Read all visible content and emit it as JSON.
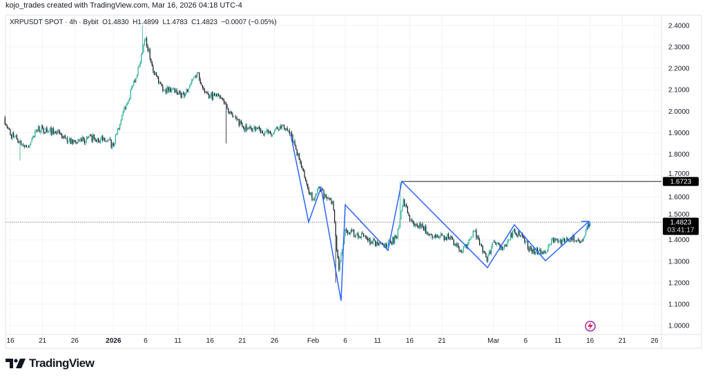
{
  "header": {
    "attribution": "kojo_trades created with TradingView.com, Mar 16, 2026 04:18 UTC-4"
  },
  "legend": {
    "symbol": "XRPUSDT SPOT · 4h · Bybit",
    "open": "O1.4830",
    "high": "H1.4899",
    "low": "L1.4783",
    "close": "C1.4823",
    "change": "−0.0007 (−0.05%)"
  },
  "badges": {
    "level": "1.6723",
    "last_price": "1.4823",
    "countdown": "03:41:17"
  },
  "colors": {
    "up": "#22ab94",
    "down": "#131722",
    "pattern": "#2962ff",
    "level_line": "#131722",
    "badge_bg": "#000000",
    "grid": "#f0f3fa"
  },
  "icons": {
    "replay": "lightning-icon",
    "brand": "tradingview-logo"
  },
  "logo": {
    "text": "TradingView"
  },
  "chart_data": {
    "type": "candlestick",
    "interval": "4h",
    "y_axis": {
      "range": [
        1.0,
        2.4
      ],
      "ticks": [
        "2.4000",
        "2.3000",
        "2.2000",
        "2.1000",
        "2.0000",
        "1.9000",
        "1.8000",
        "1.7000",
        "1.6000",
        "1.5000",
        "1.4000",
        "1.3000",
        "1.2000",
        "1.1000",
        "1.0000"
      ],
      "position": "right"
    },
    "x_axis": {
      "ticks": [
        [
          "2025-12-16",
          "16"
        ],
        [
          "2025-12-21",
          "21"
        ],
        [
          "2025-12-26",
          "26"
        ],
        [
          "2026-01-01",
          "2026"
        ],
        [
          "2026-01-06",
          "6"
        ],
        [
          "2026-01-11",
          "11"
        ],
        [
          "2026-01-16",
          "16"
        ],
        [
          "2026-01-21",
          "21"
        ],
        [
          "2026-01-26",
          "26"
        ],
        [
          "2026-02-01",
          "Feb"
        ],
        [
          "2026-02-06",
          "6"
        ],
        [
          "2026-02-11",
          "11"
        ],
        [
          "2026-02-16",
          "16"
        ],
        [
          "2026-02-21",
          "21"
        ],
        [
          "2026-03-01",
          "Mar"
        ],
        [
          "2026-03-06",
          "6"
        ],
        [
          "2026-03-11",
          "11"
        ],
        [
          "2026-03-16",
          "16"
        ],
        [
          "2026-03-21",
          "21"
        ],
        [
          "2026-03-26",
          "26"
        ]
      ]
    },
    "grid": true,
    "daily_close": [
      [
        "2025-12-15",
        1.97
      ],
      [
        "2025-12-16",
        1.89
      ],
      [
        "2025-12-17",
        1.87
      ],
      [
        "2025-12-18",
        1.84
      ],
      [
        "2025-12-19",
        1.84
      ],
      [
        "2025-12-20",
        1.91
      ],
      [
        "2025-12-21",
        1.92
      ],
      [
        "2025-12-22",
        1.91
      ],
      [
        "2025-12-23",
        1.9
      ],
      [
        "2025-12-24",
        1.88
      ],
      [
        "2025-12-25",
        1.86
      ],
      [
        "2025-12-26",
        1.86
      ],
      [
        "2025-12-27",
        1.86
      ],
      [
        "2025-12-28",
        1.875
      ],
      [
        "2025-12-29",
        1.875
      ],
      [
        "2025-12-30",
        1.87
      ],
      [
        "2025-12-31",
        1.86
      ],
      [
        "2026-01-01",
        1.84
      ],
      [
        "2026-01-02",
        1.94
      ],
      [
        "2026-01-03",
        2.03
      ],
      [
        "2026-01-04",
        2.12
      ],
      [
        "2026-01-05",
        2.21
      ],
      [
        "2026-01-06",
        2.34
      ],
      [
        "2026-01-07",
        2.21
      ],
      [
        "2026-01-08",
        2.13
      ],
      [
        "2026-01-09",
        2.1
      ],
      [
        "2026-01-10",
        2.1
      ],
      [
        "2026-01-11",
        2.08
      ],
      [
        "2026-01-12",
        2.07
      ],
      [
        "2026-01-13",
        2.13
      ],
      [
        "2026-01-14",
        2.18
      ],
      [
        "2026-01-15",
        2.1
      ],
      [
        "2026-01-16",
        2.07
      ],
      [
        "2026-01-17",
        2.07
      ],
      [
        "2026-01-18",
        2.05
      ],
      [
        "2026-01-19",
        1.99
      ],
      [
        "2026-01-20",
        1.97
      ],
      [
        "2026-01-21",
        1.93
      ],
      [
        "2026-01-22",
        1.92
      ],
      [
        "2026-01-23",
        1.91
      ],
      [
        "2026-01-24",
        1.91
      ],
      [
        "2026-01-25",
        1.9
      ],
      [
        "2026-01-26",
        1.91
      ],
      [
        "2026-01-27",
        1.92
      ],
      [
        "2026-01-28",
        1.91
      ],
      [
        "2026-01-29",
        1.86
      ],
      [
        "2026-01-30",
        1.76
      ],
      [
        "2026-01-31",
        1.66
      ],
      [
        "2026-02-01",
        1.59
      ],
      [
        "2026-02-02",
        1.64
      ],
      [
        "2026-02-03",
        1.6
      ],
      [
        "2026-02-04",
        1.58
      ],
      [
        "2026-02-05",
        1.26
      ],
      [
        "2026-02-06",
        1.45
      ],
      [
        "2026-02-07",
        1.44
      ],
      [
        "2026-02-08",
        1.41
      ],
      [
        "2026-02-09",
        1.42
      ],
      [
        "2026-02-10",
        1.39
      ],
      [
        "2026-02-11",
        1.38
      ],
      [
        "2026-02-12",
        1.37
      ],
      [
        "2026-02-13",
        1.39
      ],
      [
        "2026-02-14",
        1.41
      ],
      [
        "2026-02-15",
        1.59
      ],
      [
        "2026-02-16",
        1.49
      ],
      [
        "2026-02-17",
        1.47
      ],
      [
        "2026-02-18",
        1.46
      ],
      [
        "2026-02-19",
        1.42
      ],
      [
        "2026-02-20",
        1.41
      ],
      [
        "2026-02-21",
        1.42
      ],
      [
        "2026-02-22",
        1.41
      ],
      [
        "2026-02-23",
        1.38
      ],
      [
        "2026-02-24",
        1.34
      ],
      [
        "2026-02-25",
        1.38
      ],
      [
        "2026-02-26",
        1.44
      ],
      [
        "2026-02-27",
        1.38
      ],
      [
        "2026-02-28",
        1.3
      ],
      [
        "2026-03-01",
        1.39
      ],
      [
        "2026-03-02",
        1.36
      ],
      [
        "2026-03-03",
        1.37
      ],
      [
        "2026-03-04",
        1.44
      ],
      [
        "2026-03-05",
        1.42
      ],
      [
        "2026-03-06",
        1.39
      ],
      [
        "2026-03-07",
        1.34
      ],
      [
        "2026-03-08",
        1.35
      ],
      [
        "2026-03-09",
        1.34
      ],
      [
        "2026-03-10",
        1.4
      ],
      [
        "2026-03-11",
        1.39
      ],
      [
        "2026-03-12",
        1.39
      ],
      [
        "2026-03-13",
        1.41
      ],
      [
        "2026-03-14",
        1.4
      ],
      [
        "2026-03-15",
        1.41
      ],
      [
        "2026-03-16",
        1.4823
      ]
    ],
    "extremes": [
      {
        "date": "2026-01-06",
        "high": 2.4
      },
      {
        "date": "2026-01-19",
        "low": 1.85
      },
      {
        "date": "2025-12-18",
        "low": 1.77
      },
      {
        "date": "2026-02-05",
        "low": 1.2
      },
      {
        "date": "2026-02-15",
        "high": 1.6723
      }
    ],
    "horizontal_levels": [
      1.6723
    ],
    "last_price": 1.4823
  }
}
